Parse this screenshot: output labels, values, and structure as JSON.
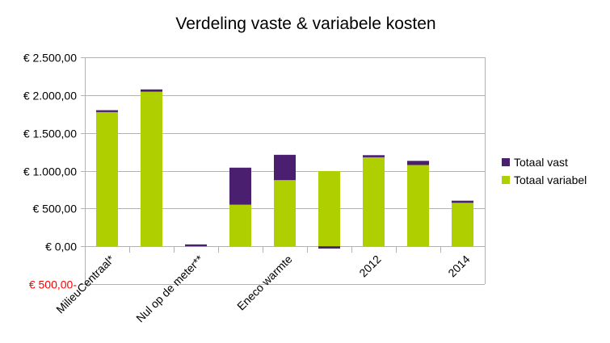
{
  "chart_data": {
    "type": "bar",
    "stacked": true,
    "title": "Verdeling vaste & variabele kosten",
    "xlabel": "",
    "ylabel": "",
    "ylim": [
      -500,
      2500
    ],
    "y_ticks": [
      2500,
      2000,
      1500,
      1000,
      500,
      0,
      -500
    ],
    "y_tick_labels": [
      "€ 2.500,00",
      "€ 2.000,00",
      "€ 1.500,00",
      "€ 1.000,00",
      "€ 500,00",
      "€ 0,00",
      "€ 500,00-"
    ],
    "negative_tick_color": "#ff0000",
    "grid": true,
    "legend_position": "right",
    "categories": [
      "MilieuCentraal*",
      "",
      "Nul op de meter**",
      "",
      "Eneco warmte",
      "",
      "2012",
      "",
      "2014"
    ],
    "series": [
      {
        "name": "Totaal variabel",
        "color": "#b0cf00",
        "values": [
          1775,
          2045,
          0,
          550,
          875,
          995,
          1177,
          1075,
          575
        ]
      },
      {
        "name": "Totaal vast",
        "color": "#4b1f6f",
        "values": [
          25,
          30,
          25,
          490,
          335,
          -30,
          28,
          55,
          28
        ]
      }
    ]
  },
  "legend": {
    "items": [
      {
        "label": "Totaal vast",
        "color": "#4b1f6f"
      },
      {
        "label": "Totaal variabel",
        "color": "#b0cf00"
      }
    ]
  }
}
